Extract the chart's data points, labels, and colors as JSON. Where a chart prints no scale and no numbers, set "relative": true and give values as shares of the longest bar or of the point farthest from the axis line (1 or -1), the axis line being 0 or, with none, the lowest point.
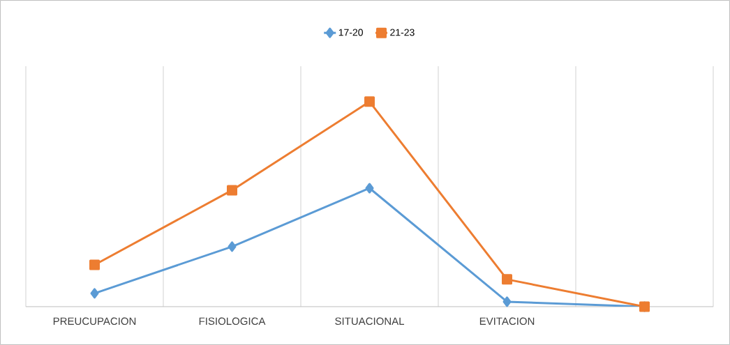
{
  "chart_data": {
    "type": "line",
    "relative": true,
    "categories": [
      "PREUCUPACION",
      "FISIOLOGICA",
      "SITUACIONAL",
      "EVITACION",
      null
    ],
    "series": [
      {
        "name": "17-20",
        "color": "#5b9bd5",
        "marker": "diamond",
        "values": [
          0.065,
          0.293,
          0.578,
          0.024,
          0
        ]
      },
      {
        "name": "21-23",
        "color": "#ed7d31",
        "marker": "square",
        "values": [
          0.204,
          0.568,
          1,
          0.133,
          0
        ]
      }
    ],
    "grid": "x",
    "legend": "top"
  }
}
